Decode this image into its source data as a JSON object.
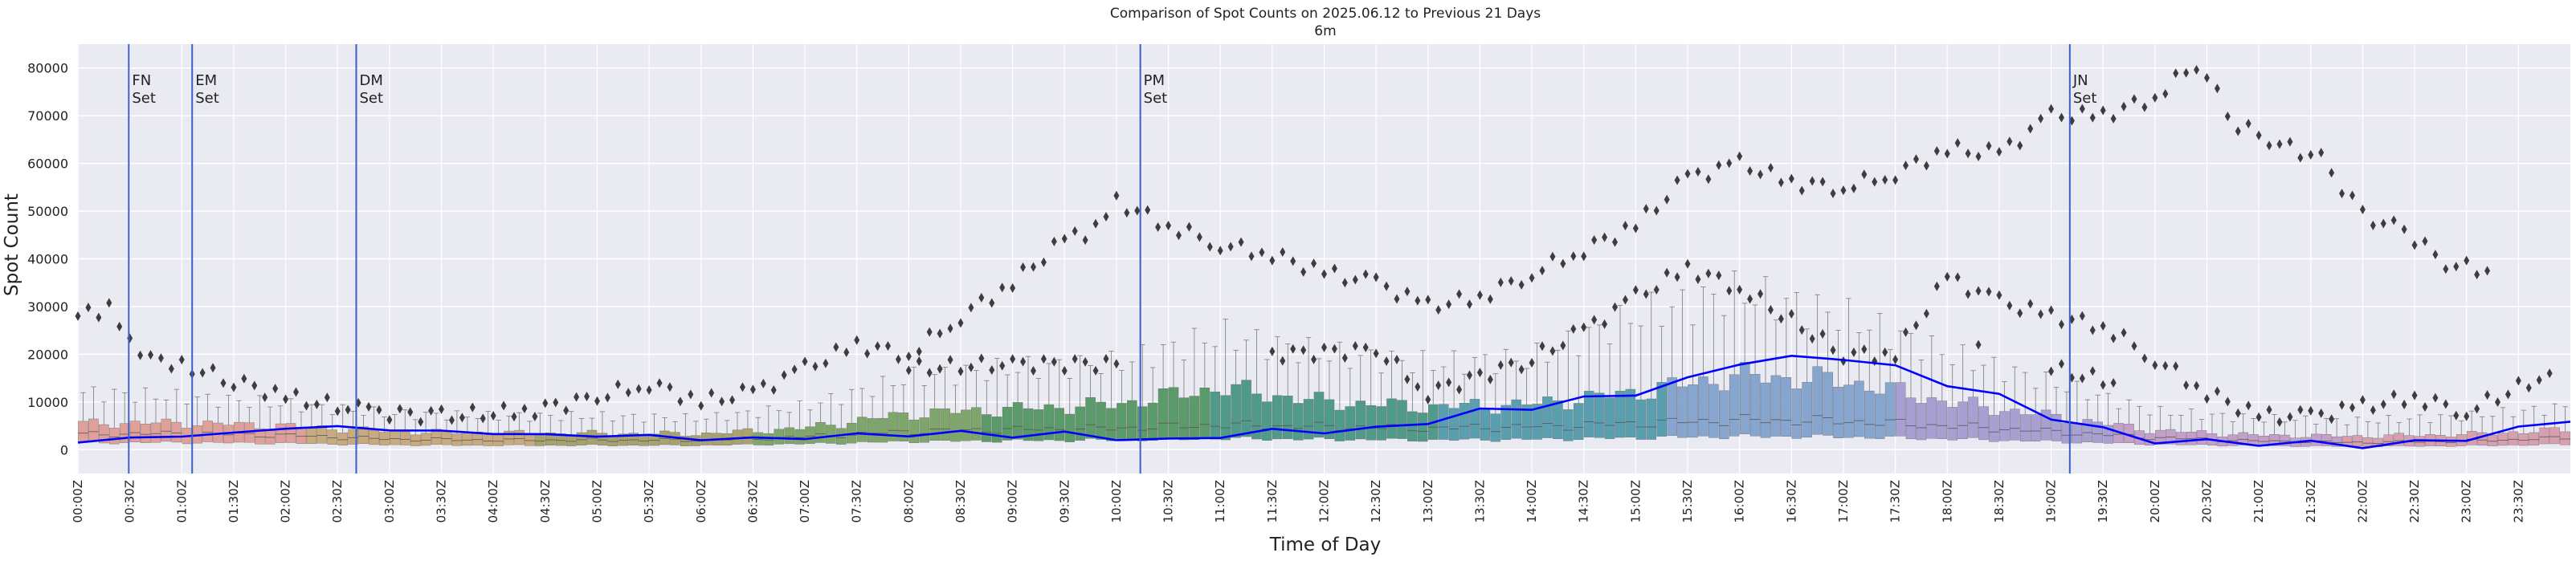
{
  "colors": {
    "plot_bg": "#eaeaf2",
    "grid": "#ffffff",
    "median_line": "#0000ff",
    "vline": "#3a5fcd",
    "outlier": "#3d3d3d",
    "text": "#222222",
    "box_palette": [
      "#e0a09a",
      "#c9a97e",
      "#a8a26c",
      "#7ea66a",
      "#5b9b6a",
      "#4f9a88",
      "#5a9fb0",
      "#86a6cf",
      "#a8a0d2",
      "#c39fc9",
      "#d8a0ae"
    ]
  },
  "chart_data": {
    "type": "box",
    "title": "Comparison of Spot Counts on 2025.06.12 to Previous 21 Days",
    "subtitle": "6m",
    "xlabel": "Time of Day",
    "ylabel": "Spot Count",
    "ylim": [
      -5000,
      85000
    ],
    "yticks": [
      0,
      10000,
      20000,
      30000,
      40000,
      50000,
      60000,
      70000,
      80000
    ],
    "grid": true,
    "bin_minutes": 6,
    "xtick_labels": [
      "00:00Z",
      "00:30Z",
      "01:00Z",
      "01:30Z",
      "02:00Z",
      "02:30Z",
      "03:00Z",
      "03:30Z",
      "04:00Z",
      "04:30Z",
      "05:00Z",
      "05:30Z",
      "06:00Z",
      "06:30Z",
      "07:00Z",
      "07:30Z",
      "08:00Z",
      "08:30Z",
      "09:00Z",
      "09:30Z",
      "10:00Z",
      "10:30Z",
      "11:00Z",
      "11:30Z",
      "12:00Z",
      "12:30Z",
      "13:00Z",
      "13:30Z",
      "14:00Z",
      "14:30Z",
      "15:00Z",
      "15:30Z",
      "16:00Z",
      "16:30Z",
      "17:00Z",
      "17:30Z",
      "18:00Z",
      "18:30Z",
      "19:00Z",
      "19:30Z",
      "20:00Z",
      "20:30Z",
      "21:00Z",
      "21:30Z",
      "22:00Z",
      "22:30Z",
      "23:00Z",
      "23:30Z"
    ],
    "events": [
      {
        "label": "FN\nSet",
        "time_hours": 0.49
      },
      {
        "label": "EM\nSet",
        "time_hours": 1.1
      },
      {
        "label": "DM\nSet",
        "time_hours": 2.68
      },
      {
        "label": "PM\nSet",
        "time_hours": 10.23
      },
      {
        "label": "JN\nSet",
        "time_hours": 19.18
      }
    ],
    "box_median_profile": [
      {
        "hour": 0,
        "value": 3200
      },
      {
        "hour": 1,
        "value": 3400
      },
      {
        "hour": 2,
        "value": 3000
      },
      {
        "hour": 3,
        "value": 2200
      },
      {
        "hour": 4,
        "value": 2000
      },
      {
        "hour": 5,
        "value": 2000
      },
      {
        "hour": 6,
        "value": 2000
      },
      {
        "hour": 7,
        "value": 2700
      },
      {
        "hour": 8,
        "value": 3800
      },
      {
        "hour": 9,
        "value": 4200
      },
      {
        "hour": 10,
        "value": 4500
      },
      {
        "hour": 11,
        "value": 5200
      },
      {
        "hour": 12,
        "value": 4800
      },
      {
        "hour": 13,
        "value": 4500
      },
      {
        "hour": 14,
        "value": 4800
      },
      {
        "hour": 15,
        "value": 5500
      },
      {
        "hour": 16,
        "value": 6200
      },
      {
        "hour": 17,
        "value": 6000
      },
      {
        "hour": 18,
        "value": 5000
      },
      {
        "hour": 19,
        "value": 3800
      },
      {
        "hour": 20,
        "value": 2500
      },
      {
        "hour": 21,
        "value": 1800
      },
      {
        "hour": 22,
        "value": 1500
      },
      {
        "hour": 23,
        "value": 1800
      },
      {
        "hour": 24,
        "value": 2500
      }
    ],
    "box_q3_profile": [
      {
        "hour": 0,
        "value": 5500
      },
      {
        "hour": 1,
        "value": 5600
      },
      {
        "hour": 2,
        "value": 5000
      },
      {
        "hour": 3,
        "value": 3800
      },
      {
        "hour": 4,
        "value": 3500
      },
      {
        "hour": 5,
        "value": 3400
      },
      {
        "hour": 6,
        "value": 3300
      },
      {
        "hour": 7,
        "value": 4500
      },
      {
        "hour": 8,
        "value": 7500
      },
      {
        "hour": 9,
        "value": 8500
      },
      {
        "hour": 10,
        "value": 9500
      },
      {
        "hour": 11,
        "value": 13000
      },
      {
        "hour": 12,
        "value": 10000
      },
      {
        "hour": 13,
        "value": 9000
      },
      {
        "hour": 14,
        "value": 9500
      },
      {
        "hour": 15,
        "value": 12000
      },
      {
        "hour": 16,
        "value": 15500
      },
      {
        "hour": 17,
        "value": 14500
      },
      {
        "hour": 18,
        "value": 10000
      },
      {
        "hour": 19,
        "value": 7000
      },
      {
        "hour": 20,
        "value": 4000
      },
      {
        "hour": 21,
        "value": 3000
      },
      {
        "hour": 22,
        "value": 2800
      },
      {
        "hour": 23,
        "value": 3200
      },
      {
        "hour": 24,
        "value": 4200
      }
    ],
    "box_whisker_profile": [
      {
        "hour": 0,
        "value": 12000
      },
      {
        "hour": 1,
        "value": 11000
      },
      {
        "hour": 2,
        "value": 9500
      },
      {
        "hour": 3,
        "value": 7500
      },
      {
        "hour": 4,
        "value": 7000
      },
      {
        "hour": 5,
        "value": 7000
      },
      {
        "hour": 6,
        "value": 6500
      },
      {
        "hour": 7,
        "value": 9000
      },
      {
        "hour": 8,
        "value": 15000
      },
      {
        "hour": 9,
        "value": 17000
      },
      {
        "hour": 10,
        "value": 18000
      },
      {
        "hour": 11,
        "value": 24000
      },
      {
        "hour": 12,
        "value": 20000
      },
      {
        "hour": 13,
        "value": 18000
      },
      {
        "hour": 14,
        "value": 19000
      },
      {
        "hour": 15,
        "value": 28000
      },
      {
        "hour": 16,
        "value": 33000
      },
      {
        "hour": 17,
        "value": 28000
      },
      {
        "hour": 18,
        "value": 20000
      },
      {
        "hour": 19,
        "value": 14000
      },
      {
        "hour": 20,
        "value": 8000
      },
      {
        "hour": 21,
        "value": 6500
      },
      {
        "hour": 22,
        "value": 6000
      },
      {
        "hour": 23,
        "value": 7000
      },
      {
        "hour": 24,
        "value": 9000
      }
    ],
    "current_day_series": [
      {
        "hour": 0,
        "value": 1500
      },
      {
        "hour": 0.5,
        "value": 2500
      },
      {
        "hour": 1,
        "value": 2800
      },
      {
        "hour": 1.5,
        "value": 3500
      },
      {
        "hour": 2,
        "value": 4500
      },
      {
        "hour": 2.5,
        "value": 4800
      },
      {
        "hour": 3,
        "value": 4200
      },
      {
        "hour": 3.5,
        "value": 3800
      },
      {
        "hour": 4,
        "value": 3500
      },
      {
        "hour": 4.5,
        "value": 3000
      },
      {
        "hour": 5,
        "value": 3000
      },
      {
        "hour": 5.5,
        "value": 2800
      },
      {
        "hour": 6,
        "value": 2300
      },
      {
        "hour": 6.5,
        "value": 2200
      },
      {
        "hour": 7,
        "value": 2600
      },
      {
        "hour": 7.5,
        "value": 3000
      },
      {
        "hour": 8,
        "value": 3200
      },
      {
        "hour": 8.5,
        "value": 3500
      },
      {
        "hour": 9,
        "value": 3000
      },
      {
        "hour": 9.5,
        "value": 3300
      },
      {
        "hour": 10,
        "value": 2500
      },
      {
        "hour": 10.5,
        "value": 1800
      },
      {
        "hour": 11,
        "value": 3000
      },
      {
        "hour": 11.5,
        "value": 3800
      },
      {
        "hour": 12,
        "value": 4000
      },
      {
        "hour": 12.5,
        "value": 4200
      },
      {
        "hour": 13,
        "value": 6000
      },
      {
        "hour": 13.5,
        "value": 8000
      },
      {
        "hour": 14,
        "value": 9000
      },
      {
        "hour": 14.5,
        "value": 10500
      },
      {
        "hour": 15,
        "value": 12000
      },
      {
        "hour": 15.5,
        "value": 14500
      },
      {
        "hour": 16,
        "value": 18500
      },
      {
        "hour": 16.5,
        "value": 19000
      },
      {
        "hour": 17,
        "value": 19500
      },
      {
        "hour": 17.5,
        "value": 17000
      },
      {
        "hour": 18,
        "value": 14000
      },
      {
        "hour": 18.5,
        "value": 11000
      },
      {
        "hour": 19,
        "value": 7000
      },
      {
        "hour": 19.5,
        "value": 4000
      },
      {
        "hour": 20,
        "value": 2000
      },
      {
        "hour": 20.5,
        "value": 1500
      },
      {
        "hour": 21,
        "value": 1500
      },
      {
        "hour": 21.5,
        "value": 1200
      },
      {
        "hour": 22,
        "value": 1000
      },
      {
        "hour": 22.5,
        "value": 1300
      },
      {
        "hour": 23,
        "value": 2500
      },
      {
        "hour": 23.5,
        "value": 4200
      },
      {
        "hour": 24,
        "value": 6500
      }
    ],
    "outlier_bands": [
      {
        "hour": 0.0,
        "value": 28000
      },
      {
        "hour": 0.3,
        "value": 29500
      },
      {
        "hour": 0.5,
        "value": 22000
      },
      {
        "hour": 0.8,
        "value": 19000
      },
      {
        "hour": 1.1,
        "value": 17000
      },
      {
        "hour": 1.5,
        "value": 14500
      },
      {
        "hour": 2.0,
        "value": 11000
      },
      {
        "hour": 2.8,
        "value": 8000
      },
      {
        "hour": 3.5,
        "value": 7000
      },
      {
        "hour": 4.3,
        "value": 8000
      },
      {
        "hour": 5.0,
        "value": 11000
      },
      {
        "hour": 5.5,
        "value": 14000
      },
      {
        "hour": 6.0,
        "value": 10000
      },
      {
        "hour": 6.5,
        "value": 12000
      },
      {
        "hour": 7.0,
        "value": 17000
      },
      {
        "hour": 7.5,
        "value": 22000
      },
      {
        "hour": 8.0,
        "value": 20000
      },
      {
        "hour": 8.5,
        "value": 28000
      },
      {
        "hour": 9.0,
        "value": 35000
      },
      {
        "hour": 9.5,
        "value": 44000
      },
      {
        "hour": 9.8,
        "value": 46000
      },
      {
        "hour": 10.0,
        "value": 52000
      },
      {
        "hour": 10.5,
        "value": 47000
      },
      {
        "hour": 11.0,
        "value": 43000
      },
      {
        "hour": 11.5,
        "value": 41000
      },
      {
        "hour": 12.0,
        "value": 37000
      },
      {
        "hour": 12.5,
        "value": 35000
      },
      {
        "hour": 13.0,
        "value": 30000
      },
      {
        "hour": 13.5,
        "value": 32000
      },
      {
        "hour": 14.0,
        "value": 37000
      },
      {
        "hour": 14.5,
        "value": 42000
      },
      {
        "hour": 15.0,
        "value": 47000
      },
      {
        "hour": 15.5,
        "value": 57000
      },
      {
        "hour": 16.0,
        "value": 60000
      },
      {
        "hour": 16.5,
        "value": 56000
      },
      {
        "hour": 17.0,
        "value": 55000
      },
      {
        "hour": 17.5,
        "value": 58000
      },
      {
        "hour": 18.0,
        "value": 63000
      },
      {
        "hour": 18.5,
        "value": 62000
      },
      {
        "hour": 19.0,
        "value": 70000
      },
      {
        "hour": 19.5,
        "value": 70000
      },
      {
        "hour": 20.0,
        "value": 74000
      },
      {
        "hour": 20.4,
        "value": 81000
      },
      {
        "hour": 20.8,
        "value": 68000
      },
      {
        "hour": 21.2,
        "value": 64000
      },
      {
        "hour": 21.6,
        "value": 61000
      },
      {
        "hour": 22.0,
        "value": 49000
      },
      {
        "hour": 22.4,
        "value": 46000
      },
      {
        "hour": 22.8,
        "value": 39000
      },
      {
        "hour": 23.2,
        "value": 37500
      },
      {
        "hour": 8.0,
        "value": 17000
      },
      {
        "hour": 9.0,
        "value": 18000
      },
      {
        "hour": 10.0,
        "value": 18000
      },
      {
        "hour": 11.5,
        "value": 20000
      },
      {
        "hour": 12.5,
        "value": 21000
      },
      {
        "hour": 13.0,
        "value": 12000
      },
      {
        "hour": 14.0,
        "value": 19000
      },
      {
        "hour": 14.5,
        "value": 25000
      },
      {
        "hour": 15.0,
        "value": 32000
      },
      {
        "hour": 15.5,
        "value": 38000
      },
      {
        "hour": 16.0,
        "value": 34000
      },
      {
        "hour": 17.0,
        "value": 20000
      },
      {
        "hour": 17.5,
        "value": 20000
      },
      {
        "hour": 18.0,
        "value": 36000
      },
      {
        "hour": 18.5,
        "value": 31000
      },
      {
        "hour": 19.0,
        "value": 28000
      },
      {
        "hour": 19.5,
        "value": 26000
      },
      {
        "hour": 20.0,
        "value": 19000
      },
      {
        "hour": 20.5,
        "value": 12000
      },
      {
        "hour": 21.0,
        "value": 7000
      },
      {
        "hour": 21.5,
        "value": 7000
      },
      {
        "hour": 22.0,
        "value": 9000
      },
      {
        "hour": 22.5,
        "value": 11000
      },
      {
        "hour": 23.0,
        "value": 8000
      },
      {
        "hour": 23.8,
        "value": 16000
      },
      {
        "hour": 19.0,
        "value": 17000
      },
      {
        "hour": 19.6,
        "value": 14000
      },
      {
        "hour": 18.3,
        "value": 22000
      },
      {
        "hour": 20.8,
        "value": 15000
      }
    ]
  }
}
